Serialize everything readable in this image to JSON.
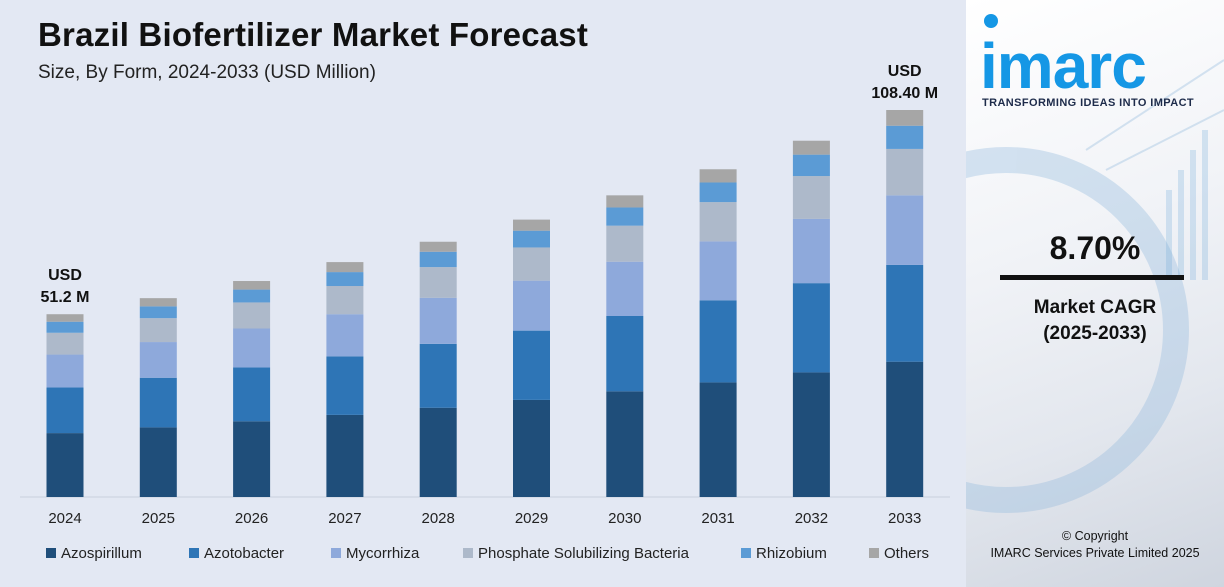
{
  "title": "Brazil Biofertilizer Market Forecast",
  "subtitle": "Size, By Form, 2024-2033 (USD Million)",
  "brand": {
    "logo": "imarc",
    "tagline": "TRANSFORMING IDEAS INTO IMPACT",
    "color": "#1597e5"
  },
  "cagr": {
    "value": "8.70%",
    "label_line1": "Market CAGR",
    "label_line2": "(2025-2033)"
  },
  "copyright": {
    "line1": "© Copyright",
    "line2": "IMARC Services Private Limited 2025"
  },
  "chart_data": {
    "type": "bar",
    "stacked": true,
    "title": "Brazil Biofertilizer Market Forecast",
    "subtitle": "Size, By Form, 2024-2033 (USD Million)",
    "categories": [
      "2024",
      "2025",
      "2026",
      "2027",
      "2028",
      "2029",
      "2030",
      "2031",
      "2032",
      "2033"
    ],
    "totals": [
      51.2,
      55.7,
      60.5,
      65.8,
      71.5,
      77.7,
      84.5,
      91.8,
      99.8,
      108.4
    ],
    "annotations": [
      {
        "category": "2024",
        "line1": "USD",
        "line2": "51.2 M"
      },
      {
        "category": "2033",
        "line1": "USD",
        "line2": "108.40 M"
      }
    ],
    "series": [
      {
        "name": "Azospirillum",
        "color": "#1f4e7a",
        "values": [
          17.9,
          19.5,
          21.2,
          23.0,
          25.0,
          27.2,
          29.6,
          32.1,
          34.9,
          37.9
        ]
      },
      {
        "name": "Azotobacter",
        "color": "#2e75b6",
        "values": [
          12.8,
          13.9,
          15.1,
          16.4,
          17.9,
          19.4,
          21.1,
          23.0,
          25.0,
          27.1
        ]
      },
      {
        "name": "Mycorrhiza",
        "color": "#8ea9db",
        "values": [
          9.2,
          10.0,
          10.9,
          11.8,
          12.9,
          14.0,
          15.2,
          16.5,
          18.0,
          19.5
        ]
      },
      {
        "name": "Phosphate Solubilizing Bacteria",
        "color": "#adb9ca",
        "values": [
          6.1,
          6.7,
          7.3,
          7.9,
          8.6,
          9.3,
          10.1,
          11.0,
          12.0,
          13.0
        ]
      },
      {
        "name": "Rhizobium",
        "color": "#5b9bd5",
        "values": [
          3.1,
          3.3,
          3.6,
          3.9,
          4.3,
          4.7,
          5.1,
          5.5,
          6.0,
          6.5
        ]
      },
      {
        "name": "Others",
        "color": "#a6a6a6",
        "values": [
          2.1,
          2.3,
          2.4,
          2.8,
          2.8,
          3.1,
          3.4,
          3.7,
          3.9,
          4.4
        ]
      }
    ],
    "xlabel": "",
    "ylabel": "",
    "ylim": [
      0,
      108.4
    ],
    "grid": false,
    "legend": "bottom"
  }
}
